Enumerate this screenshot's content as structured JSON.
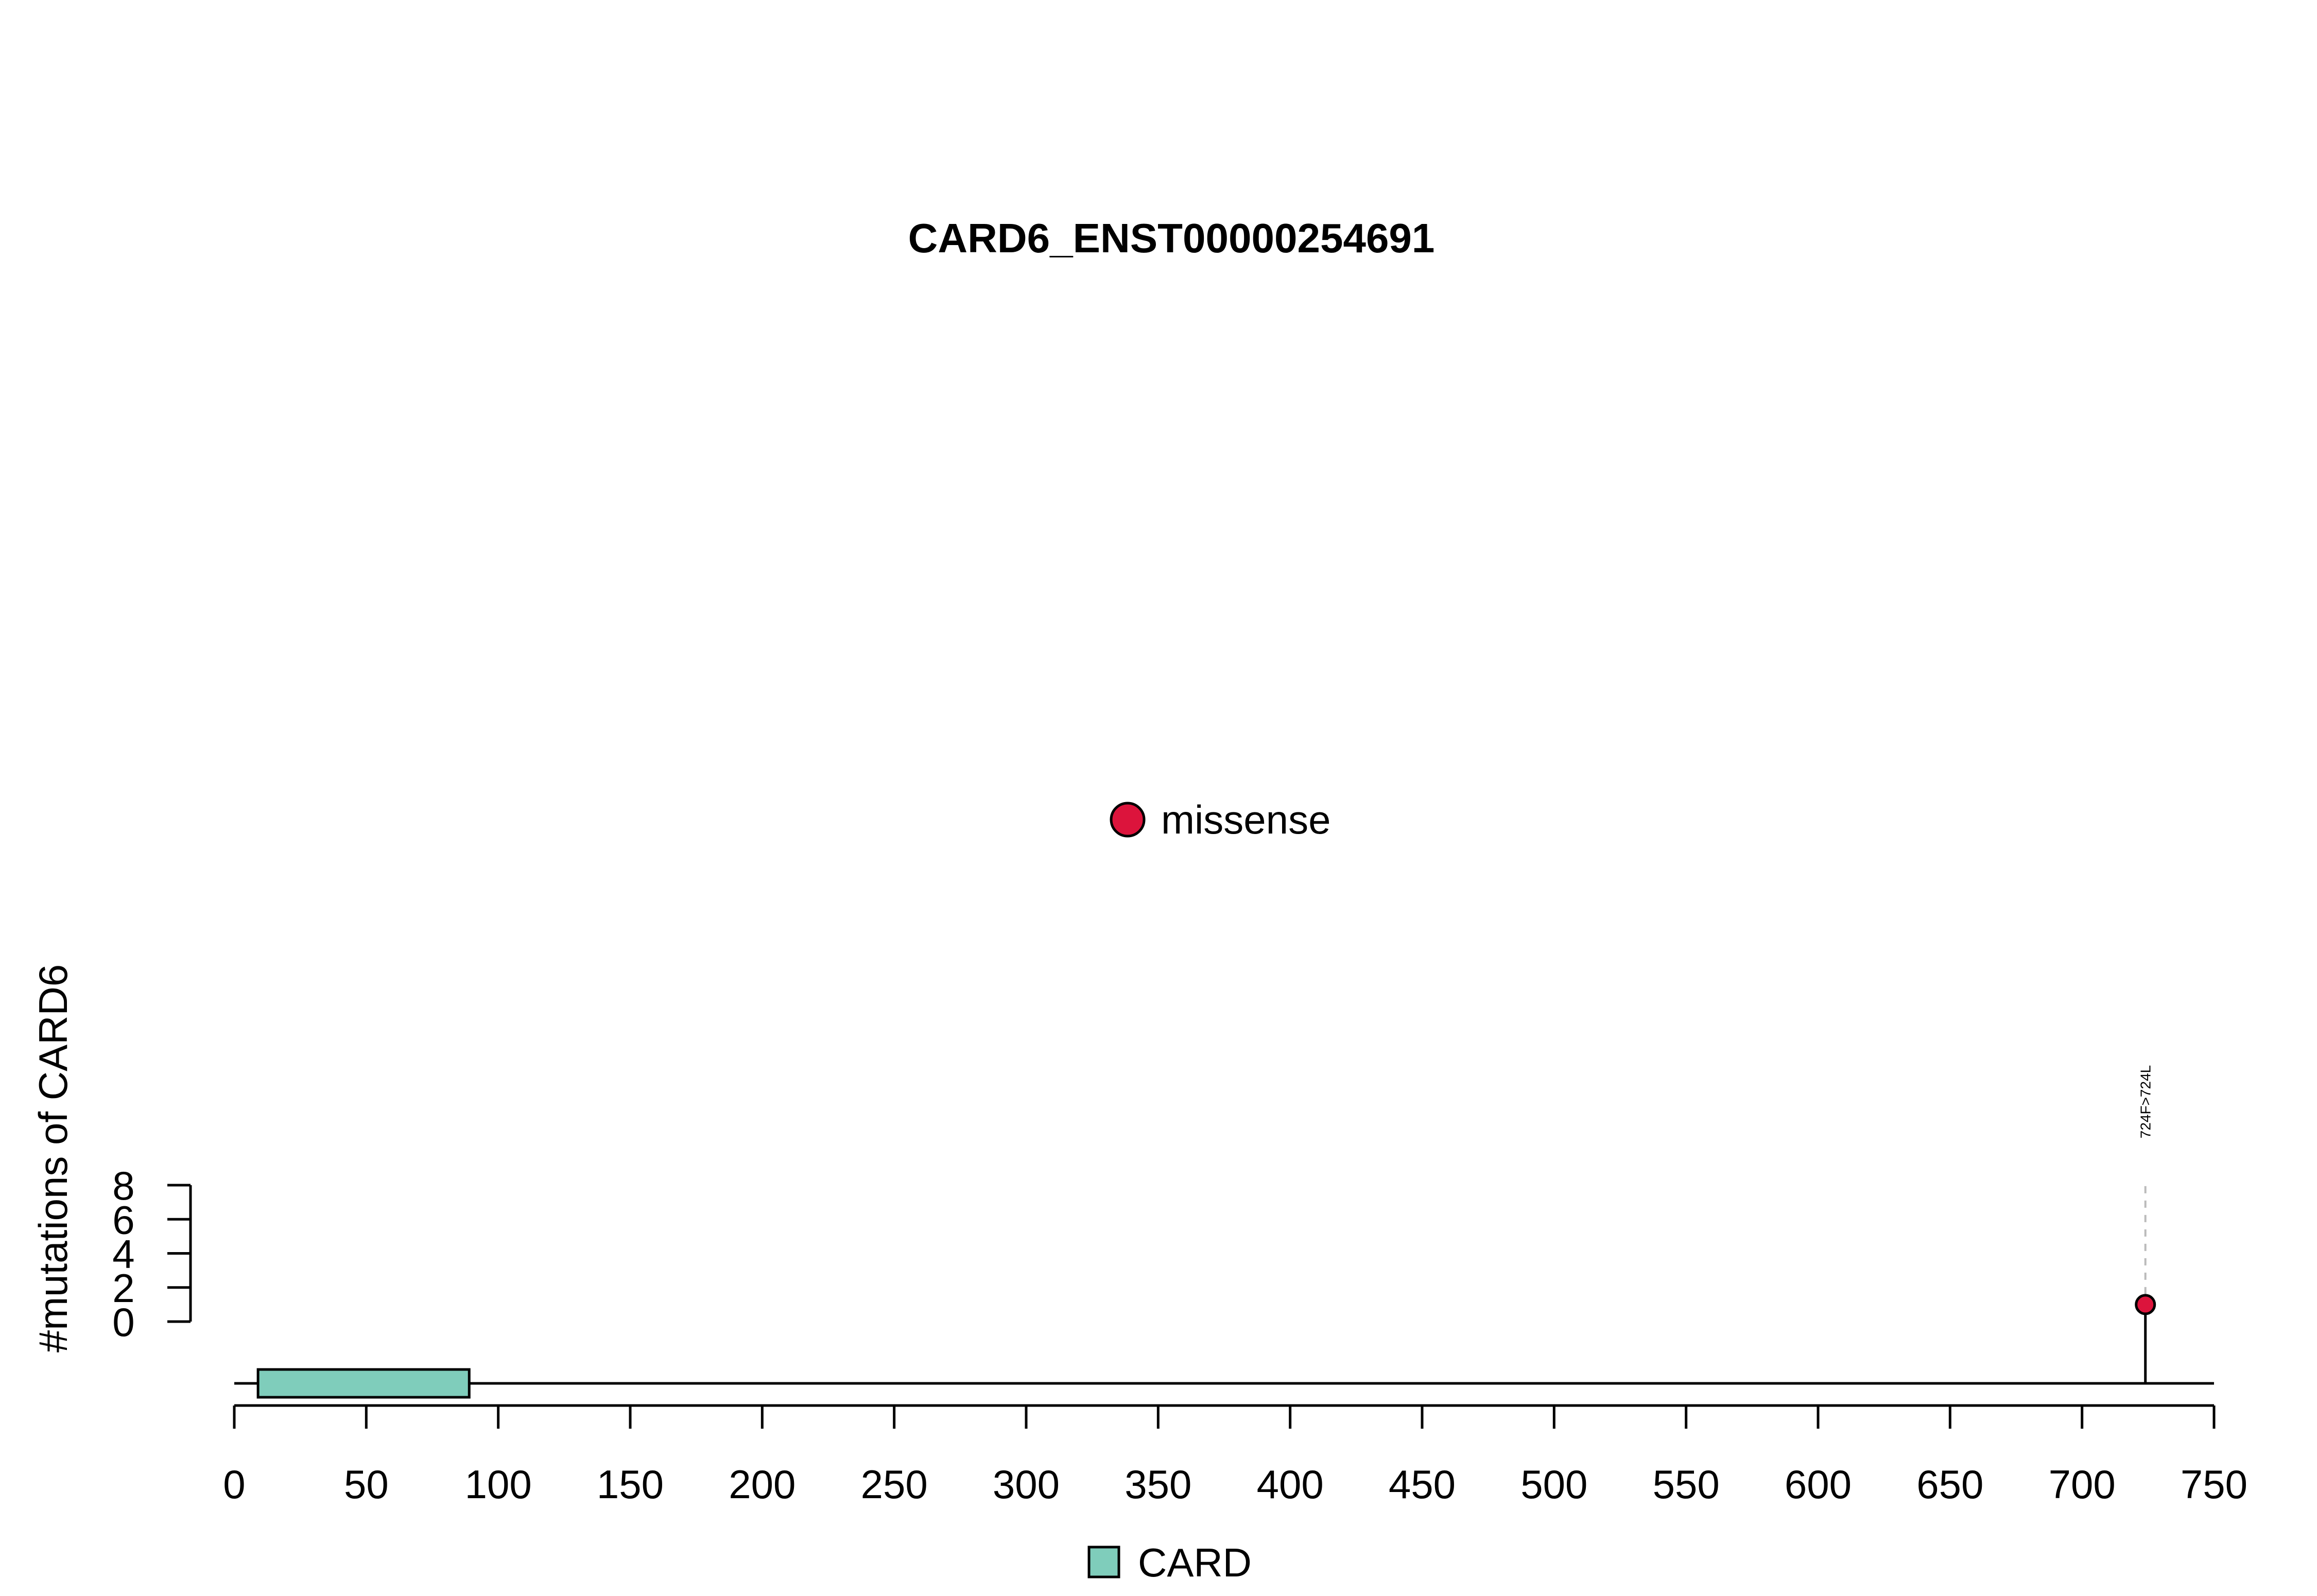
{
  "chart_data": {
    "type": "lollipop",
    "title": "CARD6_ENST00000254691",
    "ylabel": "#mutations of CARD6",
    "xlabel": "",
    "xlim": [
      0,
      750
    ],
    "x_ticks": [
      0,
      50,
      100,
      150,
      200,
      250,
      300,
      350,
      400,
      450,
      500,
      550,
      600,
      650,
      700,
      750
    ],
    "y_ticks": [
      0,
      2,
      4,
      6,
      8
    ],
    "ylim": [
      0,
      8
    ],
    "protein_length": 724,
    "domains": [
      {
        "name": "CARD",
        "start": 9,
        "end": 89,
        "color": "#7fcdbb"
      }
    ],
    "mutations": [
      {
        "position": 724,
        "count": 1,
        "label": "724F>724L",
        "type": "missense",
        "color": "#dc143c"
      }
    ],
    "legend_top": [
      {
        "label": "missense",
        "color": "#dc143c"
      }
    ],
    "legend_bottom": [
      {
        "label": "CARD",
        "color": "#7fcdbb"
      }
    ]
  }
}
